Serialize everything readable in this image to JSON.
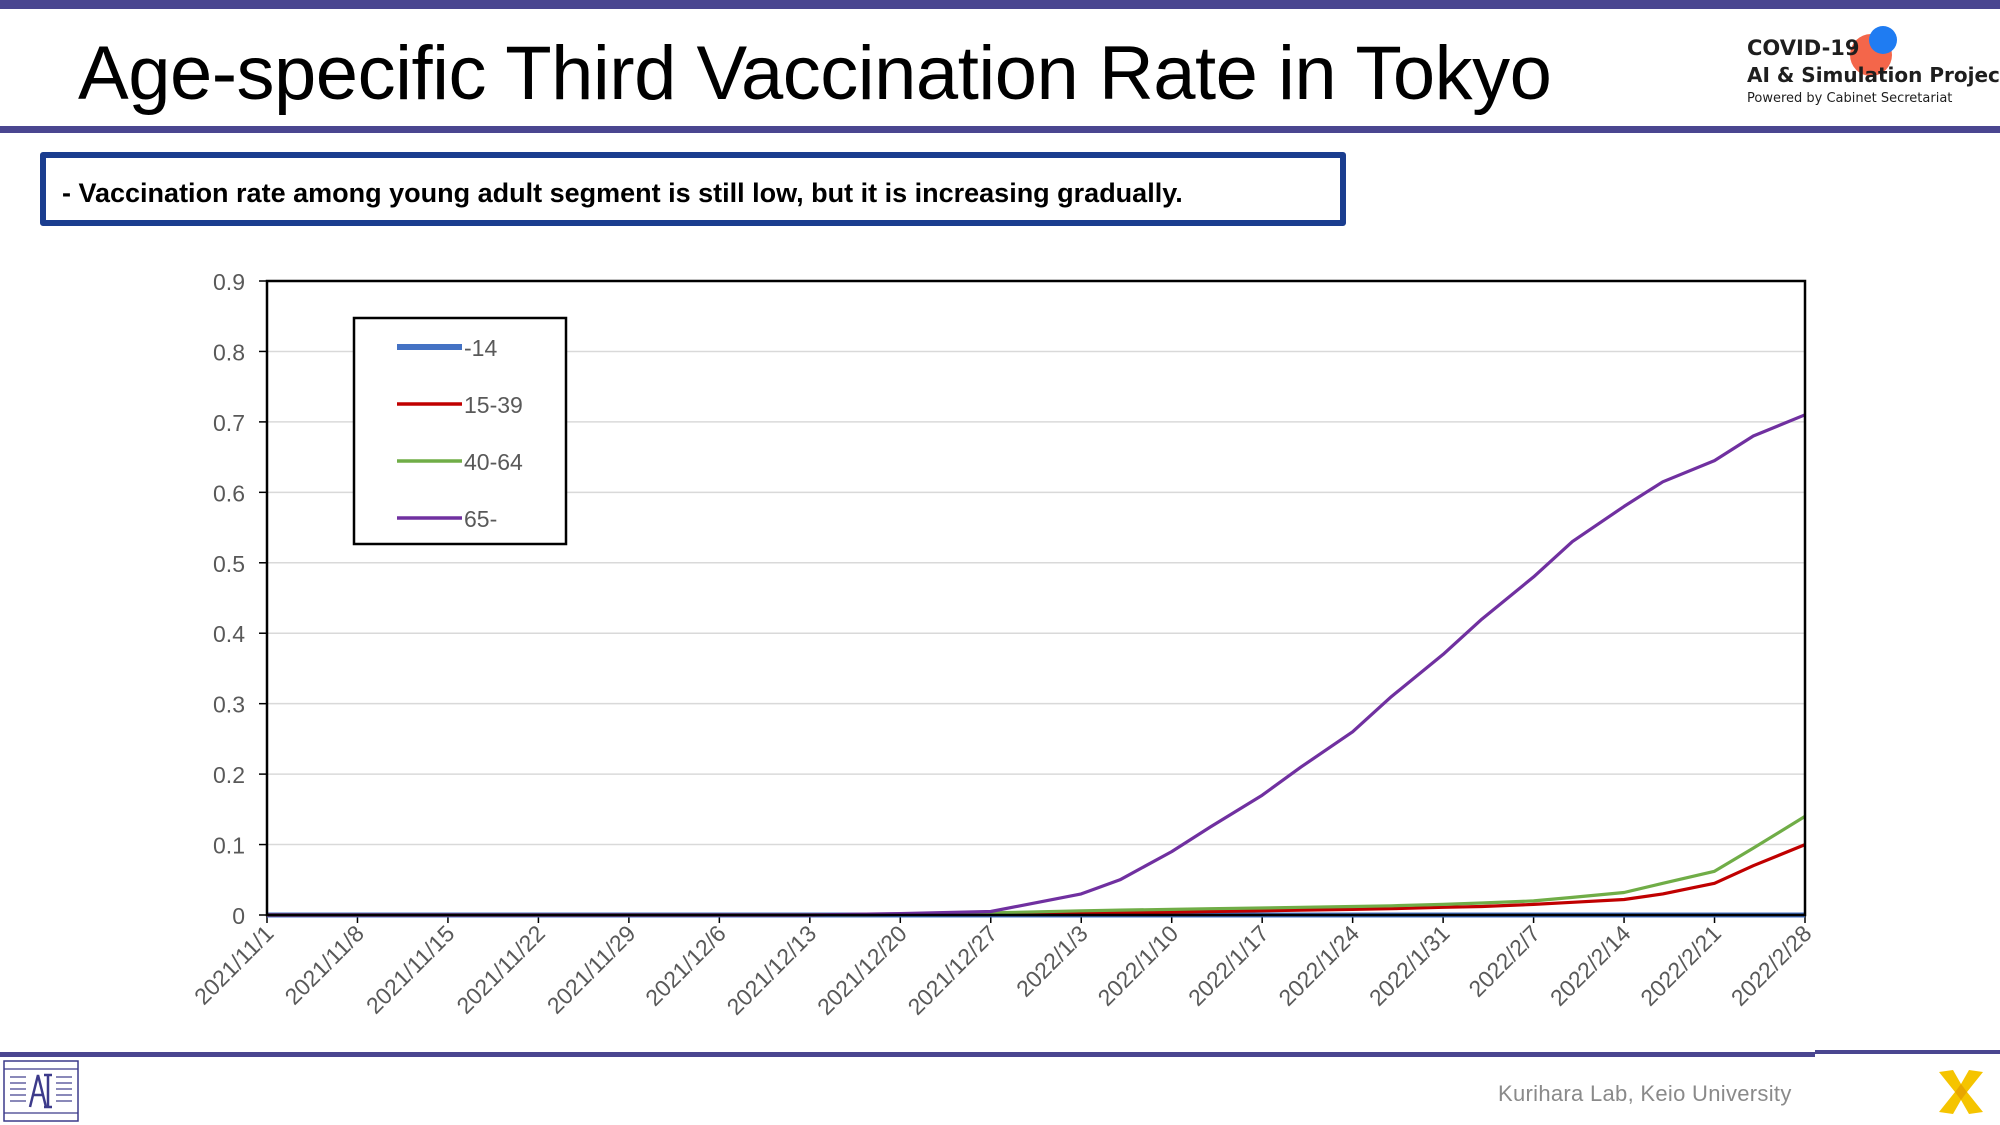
{
  "header": {
    "title": "Age-specific Third Vaccination Rate in Tokyo",
    "logo_line1": "COVID-19",
    "logo_line2": "AI & Simulation Project",
    "logo_line3": "Powered by Cabinet Secretariat"
  },
  "callout": {
    "text": "- Vaccination rate among young adult segment is still low, but it is increasing gradually."
  },
  "footer": {
    "credit": "Kurihara Lab, Keio University"
  },
  "colors": {
    "accent_bar": "#4a4690",
    "callout_border": "#1a3d8f"
  },
  "chart_data": {
    "type": "line",
    "title": "",
    "xlabel": "",
    "ylabel": "",
    "ylim": [
      0,
      0.9
    ],
    "y_ticks": [
      "0",
      "0.1",
      "0.2",
      "0.3",
      "0.4",
      "0.5",
      "0.6",
      "0.7",
      "0.8",
      "0.9"
    ],
    "x_ticks": [
      "2021/11/1",
      "2021/11/8",
      "2021/11/15",
      "2021/11/22",
      "2021/11/29",
      "2021/12/6",
      "2021/12/13",
      "2021/12/20",
      "2021/12/27",
      "2022/1/3",
      "2022/1/10",
      "2022/1/17",
      "2022/1/24",
      "2022/1/31",
      "2022/2/7",
      "2022/2/14",
      "2022/2/21",
      "2022/2/28"
    ],
    "grid": "horizontal",
    "legend_position": "top-left",
    "x": [
      "2021/11/1",
      "2021/11/8",
      "2021/11/15",
      "2021/11/22",
      "2021/11/29",
      "2021/12/6",
      "2021/12/13",
      "2021/12/20",
      "2021/12/27",
      "2022/1/3",
      "2022/1/6",
      "2022/1/10",
      "2022/1/13",
      "2022/1/17",
      "2022/1/20",
      "2022/1/24",
      "2022/1/27",
      "2022/1/31",
      "2022/2/3",
      "2022/2/7",
      "2022/2/10",
      "2022/2/14",
      "2022/2/17",
      "2022/2/21",
      "2022/2/24",
      "2022/2/28"
    ],
    "series": [
      {
        "name": "-14",
        "color": "#4472c4",
        "values": [
          0,
          0,
          0,
          0,
          0,
          0,
          0,
          0,
          0,
          0,
          0,
          0,
          0,
          0,
          0,
          0,
          0,
          0,
          0,
          0,
          0,
          0,
          0,
          0,
          0,
          0
        ]
      },
      {
        "name": "15-39",
        "color": "#c00000",
        "values": [
          0,
          0,
          0,
          0,
          0,
          0,
          0,
          0.001,
          0.002,
          0.003,
          0.003,
          0.004,
          0.005,
          0.006,
          0.007,
          0.008,
          0.009,
          0.011,
          0.012,
          0.015,
          0.018,
          0.022,
          0.03,
          0.045,
          0.07,
          0.1
        ]
      },
      {
        "name": "40-64",
        "color": "#70ad47",
        "values": [
          0,
          0,
          0,
          0,
          0,
          0,
          0,
          0.001,
          0.003,
          0.006,
          0.007,
          0.008,
          0.009,
          0.01,
          0.011,
          0.012,
          0.013,
          0.015,
          0.017,
          0.02,
          0.025,
          0.032,
          0.045,
          0.062,
          0.095,
          0.14
        ]
      },
      {
        "name": "65-",
        "color": "#7030a0",
        "values": [
          0,
          0,
          0,
          0,
          0,
          0,
          0,
          0.002,
          0.005,
          0.03,
          0.05,
          0.09,
          0.125,
          0.17,
          0.21,
          0.26,
          0.31,
          0.37,
          0.42,
          0.48,
          0.53,
          0.58,
          0.615,
          0.645,
          0.68,
          0.71
        ]
      }
    ]
  }
}
